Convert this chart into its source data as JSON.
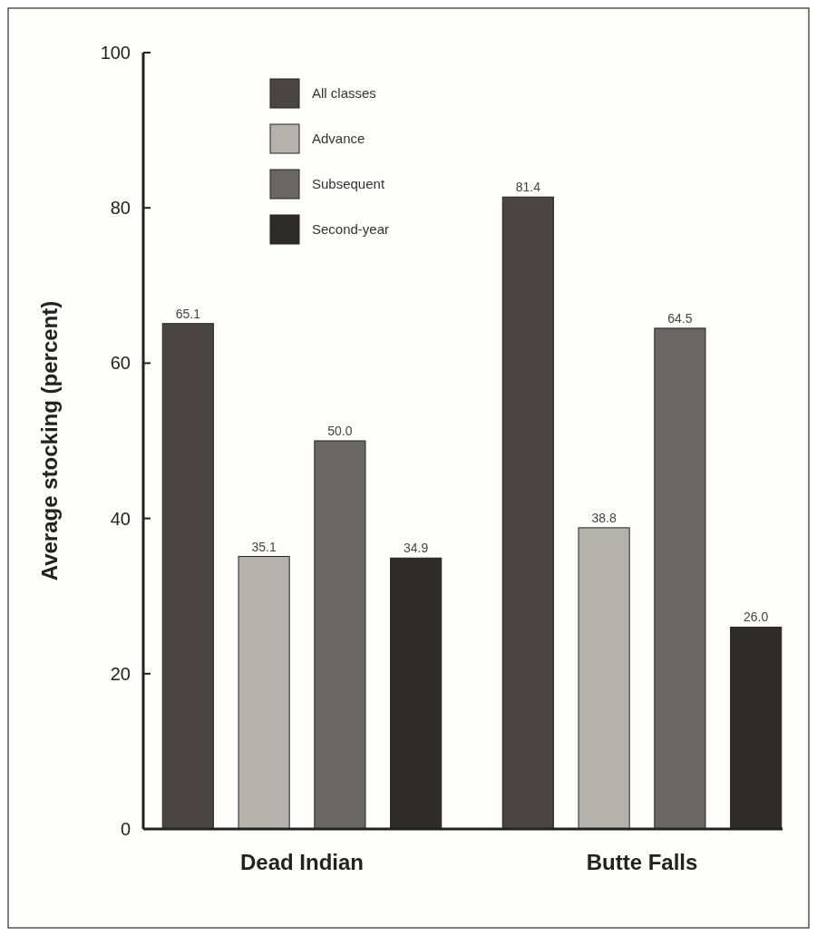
{
  "chart_data": {
    "type": "bar",
    "ylabel": "Average stocking (percent)",
    "categories": [
      "Dead Indian",
      "Butte Falls"
    ],
    "series": [
      {
        "name": "All classes",
        "color": "#4a4444",
        "values": [
          65.1,
          81.4
        ],
        "value_labels": [
          "65.1",
          "81.4"
        ]
      },
      {
        "name": "Advance",
        "color": "#b4b2aa",
        "values": [
          35.1,
          38.8
        ],
        "value_labels": [
          "35.1",
          "38.8"
        ]
      },
      {
        "name": "Subsequent",
        "color": "#6b6666",
        "values": [
          50.0,
          64.5
        ],
        "value_labels": [
          "50.0",
          "64.5"
        ]
      },
      {
        "name": "Second-year",
        "color": "#2f2b2b",
        "values": [
          34.9,
          26.0
        ],
        "value_labels": [
          "34.9",
          "26.0"
        ]
      }
    ],
    "ylim": [
      0,
      100
    ],
    "yticks": [
      0,
      20,
      40,
      60,
      80,
      100
    ],
    "grid": false,
    "legend": "top left"
  }
}
